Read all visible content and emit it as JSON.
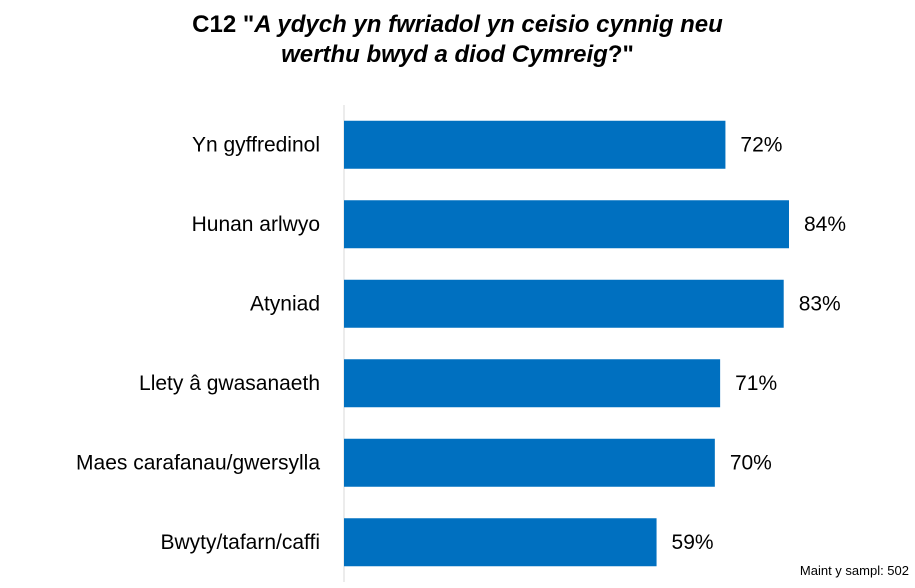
{
  "chart_data": {
    "type": "bar",
    "orientation": "horizontal",
    "title_code": "C12",
    "title_quote_open": "\"",
    "title_question_line1": "A ydych yn fwriadol yn ceisio cynnig neu",
    "title_question_line2": "werthu bwyd a diod Cymreig",
    "title_close": "?\"",
    "categories": [
      "Yn gyffredinol",
      "Hunan arlwyo",
      "Atyniad",
      "Llety â gwasanaeth",
      "Maes carafanau/gwersylla",
      "Bwyty/tafarn/caffi"
    ],
    "values": [
      72,
      84,
      83,
      71,
      70,
      59
    ],
    "value_labels": [
      "72%",
      "84%",
      "83%",
      "71%",
      "70%",
      "59%"
    ],
    "xlim": [
      0,
      100
    ],
    "grid": false,
    "legend": "none",
    "bar_color": "#0070C0",
    "axis_color": "#d9d9d9"
  },
  "footnote": "Maint y sampl: 502"
}
